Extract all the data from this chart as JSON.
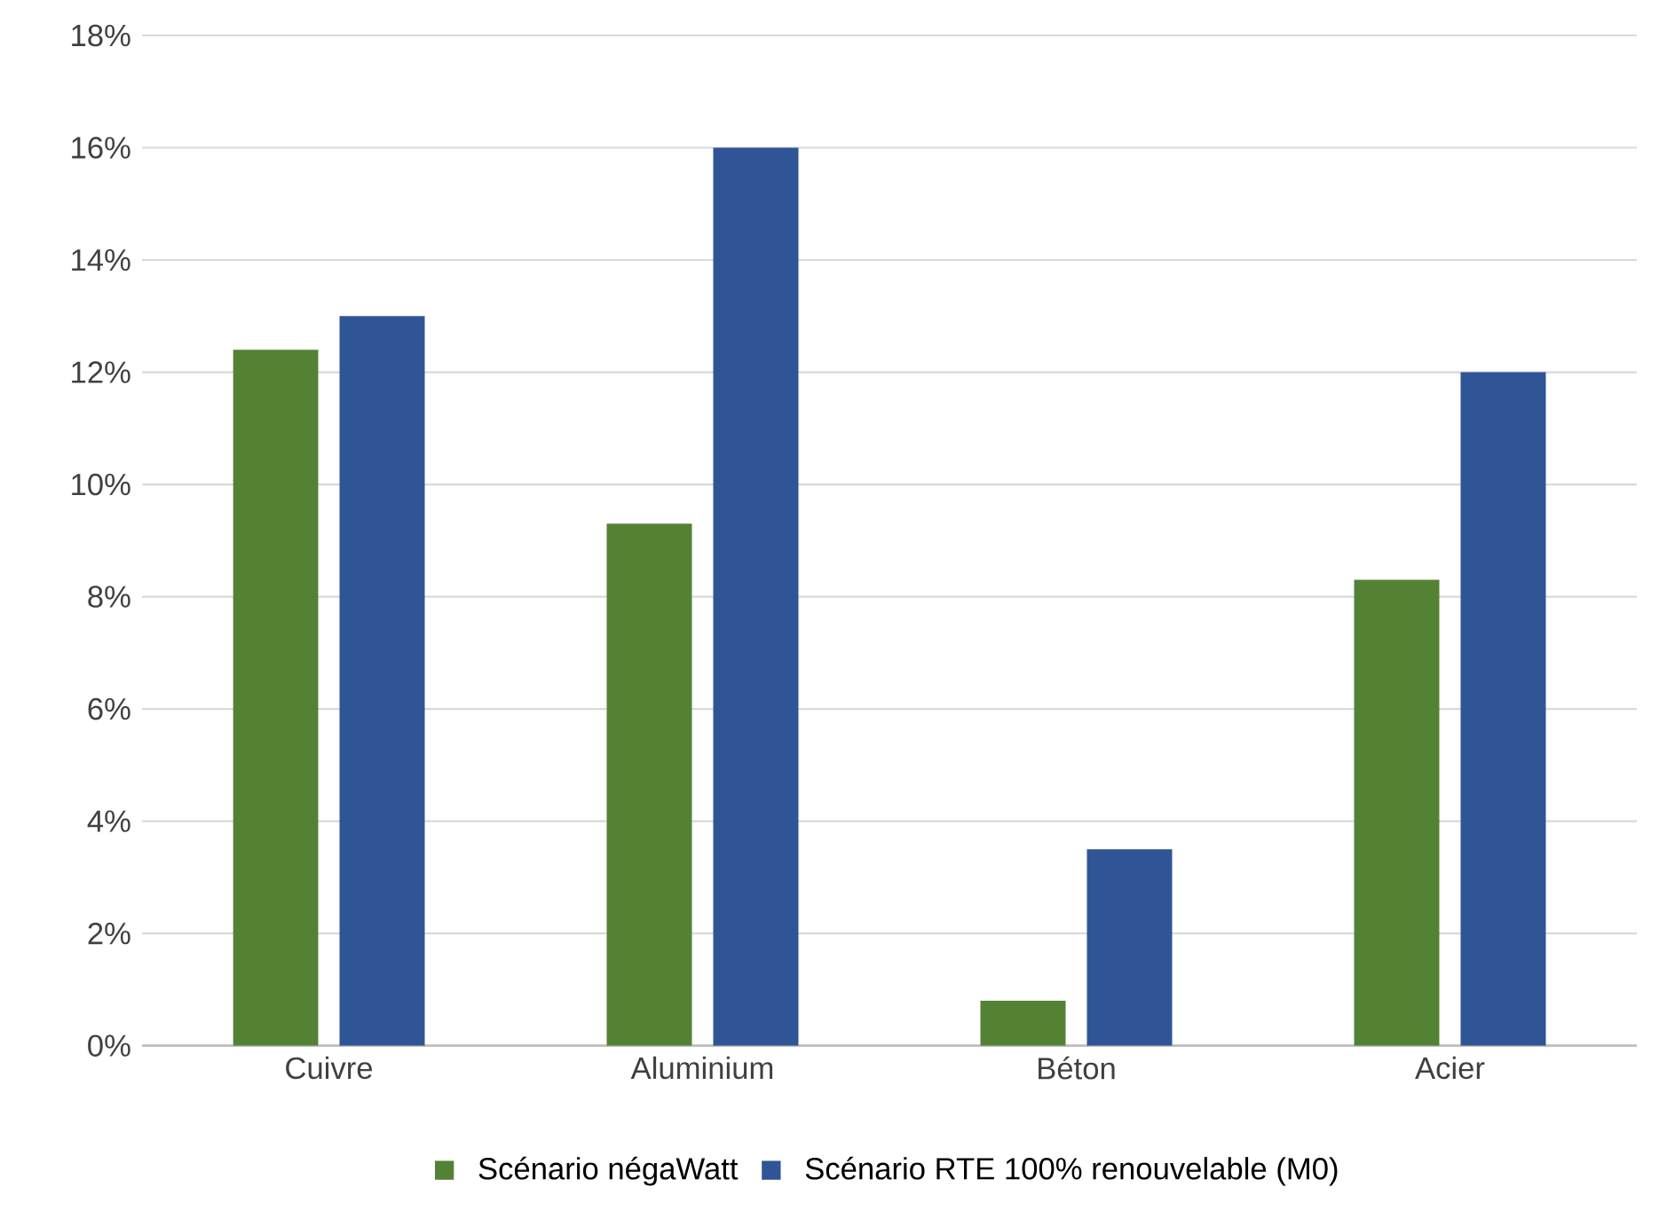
{
  "chart_data": {
    "type": "bar",
    "categories": [
      "Cuivre",
      "Aluminium",
      "Béton",
      "Acier"
    ],
    "series": [
      {
        "name": "Scénario négaWatt",
        "color": "#548235",
        "values": [
          12.4,
          9.3,
          0.8,
          8.3
        ]
      },
      {
        "name": "Scénario RTE 100% renouvelable (M0)",
        "color": "#2f5597",
        "values": [
          13.0,
          16.0,
          3.5,
          12.0
        ]
      }
    ],
    "ylim": [
      0,
      18
    ],
    "yticks": [
      {
        "value": 0,
        "label": "0%"
      },
      {
        "value": 2,
        "label": "2%"
      },
      {
        "value": 4,
        "label": "4%"
      },
      {
        "value": 6,
        "label": "6%"
      },
      {
        "value": 8,
        "label": "8%"
      },
      {
        "value": 10,
        "label": "10%"
      },
      {
        "value": 12,
        "label": "12%"
      },
      {
        "value": 14,
        "label": "14%"
      },
      {
        "value": 16,
        "label": "16%"
      },
      {
        "value": 18,
        "label": "18%"
      }
    ],
    "grid": "y",
    "legend": "bottom"
  }
}
